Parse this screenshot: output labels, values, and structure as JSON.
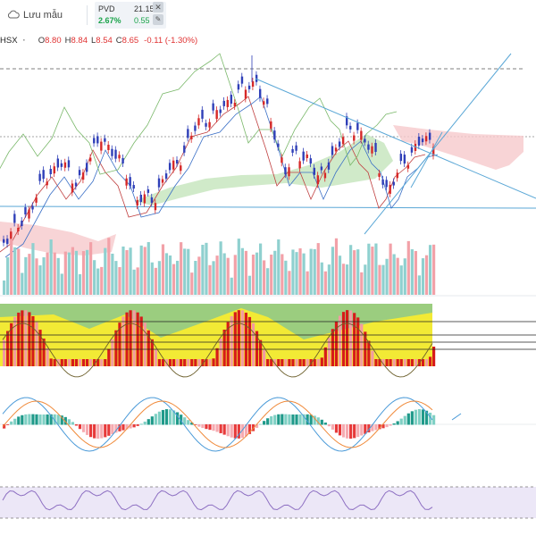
{
  "toolbar": {
    "save_label": "Lưu mẫu"
  },
  "ticker": {
    "symbol": "PVD",
    "price": "21.15",
    "change_pct": "2.67%",
    "change": "0.55"
  },
  "legend": {
    "exchange": "HSX",
    "open_label": "O",
    "open": "8.80",
    "high_label": "H",
    "high": "8.84",
    "low_label": "L",
    "low": "8.54",
    "close_label": "C",
    "close": "8.65",
    "change": "-0.11 (-1.30%)"
  },
  "colors": {
    "up_candle": "#2f3fb8",
    "down_candle": "#d62828",
    "cloud_bull": "#c8e6c0",
    "cloud_bear": "#f6c9cc",
    "trendline": "#5aa7d6",
    "volume_up": "#8fd0cf",
    "volume_down": "#f2a1a8",
    "macd_line": "#4a9ad8",
    "signal_line": "#f08a3a",
    "rsi_line": "#8d6fc2"
  }
}
